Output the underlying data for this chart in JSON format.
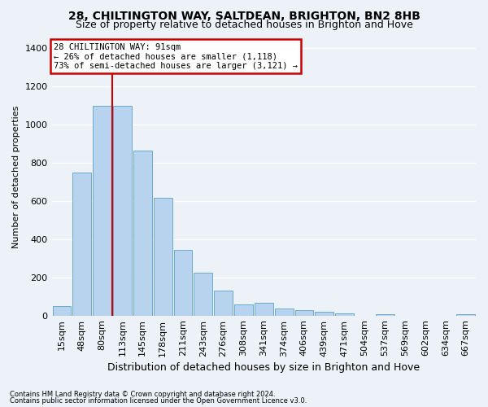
{
  "title": "28, CHILTINGTON WAY, SALTDEAN, BRIGHTON, BN2 8HB",
  "subtitle": "Size of property relative to detached houses in Brighton and Hove",
  "xlabel": "Distribution of detached houses by size in Brighton and Hove",
  "ylabel": "Number of detached properties",
  "footnote1": "Contains HM Land Registry data © Crown copyright and database right 2024.",
  "footnote2": "Contains public sector information licensed under the Open Government Licence v3.0.",
  "categories": [
    "15sqm",
    "48sqm",
    "80sqm",
    "113sqm",
    "145sqm",
    "178sqm",
    "211sqm",
    "243sqm",
    "276sqm",
    "308sqm",
    "341sqm",
    "374sqm",
    "406sqm",
    "439sqm",
    "471sqm",
    "504sqm",
    "537sqm",
    "569sqm",
    "602sqm",
    "634sqm",
    "667sqm"
  ],
  "values": [
    50,
    750,
    1100,
    1100,
    865,
    615,
    345,
    225,
    130,
    60,
    65,
    35,
    30,
    20,
    12,
    0,
    8,
    0,
    0,
    0,
    8
  ],
  "bar_color": "#b8d3ee",
  "bar_edge_color": "#6aaad4",
  "vline_x": 2.5,
  "vline_color": "#cc0000",
  "annotation_line1": "28 CHILTINGTON WAY: 91sqm",
  "annotation_line2": "← 26% of detached houses are smaller (1,118)",
  "annotation_line3": "73% of semi-detached houses are larger (3,121) →",
  "annotation_border_color": "#cc0000",
  "annotation_face_color": "#ffffff",
  "background_color": "#edf2f9",
  "ylim_max": 1450,
  "yticks": [
    0,
    200,
    400,
    600,
    800,
    1000,
    1200,
    1400
  ],
  "title_fontsize": 10,
  "subtitle_fontsize": 9,
  "ylabel_fontsize": 8,
  "xlabel_fontsize": 9,
  "tick_fontsize": 8,
  "annot_fontsize": 7.5,
  "footnote_fontsize": 6
}
